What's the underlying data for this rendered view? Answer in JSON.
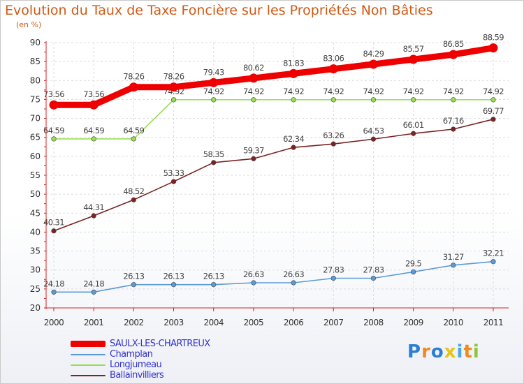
{
  "chart_data": {
    "type": "line",
    "title": "Evolution du Taux de Taxe Foncière sur les Propriétés Non Bâties",
    "unit_label": "(en %)",
    "categories": [
      "2000",
      "2001",
      "2002",
      "2003",
      "2004",
      "2005",
      "2006",
      "2007",
      "2008",
      "2009",
      "2010",
      "2011"
    ],
    "ylim": [
      20,
      90
    ],
    "yticks": [
      20,
      25,
      30,
      35,
      40,
      45,
      50,
      55,
      60,
      65,
      70,
      75,
      80,
      85,
      90
    ],
    "grid": true,
    "legend_position": "bottom-left",
    "series": [
      {
        "name": "SAULX-LES-CHARTREUX",
        "color": "#ee0000",
        "values": [
          73.56,
          73.56,
          78.26,
          78.26,
          79.43,
          80.62,
          81.83,
          83.06,
          84.29,
          85.57,
          86.85,
          88.59
        ],
        "labels": [
          "73.56",
          "73.56",
          "78.26",
          "78.26",
          "79.43",
          "80.62",
          "81.83",
          "83.06",
          "84.29",
          "85.57",
          "86.85",
          "88.59"
        ]
      },
      {
        "name": "Champlan",
        "color": "#5b9bd5",
        "values": [
          24.18,
          24.18,
          26.13,
          26.13,
          26.13,
          26.63,
          26.63,
          27.83,
          27.83,
          29.5,
          31.27,
          32.21
        ],
        "labels": [
          "24.18",
          "24.18",
          "26.13",
          "26.13",
          "26.13",
          "26.63",
          "26.63",
          "27.83",
          "27.83",
          "29.5",
          "31.27",
          "32.21"
        ]
      },
      {
        "name": "Longjumeau",
        "color": "#99dd55",
        "values": [
          64.59,
          64.59,
          64.59,
          74.92,
          74.92,
          74.92,
          74.92,
          74.92,
          74.92,
          74.92,
          74.92,
          74.92
        ],
        "labels": [
          "64.59",
          "64.59",
          "64.59",
          "74.92",
          "74.92",
          "74.92",
          "74.92",
          "74.92",
          "74.92",
          "74.92",
          "74.92",
          "74.92"
        ]
      },
      {
        "name": "Ballainvilliers",
        "color": "#7a2424",
        "values": [
          40.31,
          44.31,
          48.52,
          53.33,
          58.35,
          59.37,
          62.34,
          63.26,
          64.53,
          66.01,
          67.16,
          69.77
        ],
        "labels": [
          "40.31",
          "44.31",
          "48.52",
          "53.33",
          "58.35",
          "59.37",
          "62.34",
          "63.26",
          "64.53",
          "66.01",
          "67.16",
          "69.77"
        ]
      }
    ]
  },
  "legend": {
    "items": [
      {
        "name": "SAULX-LES-CHARTREUX",
        "color": "#ee0000",
        "text_color": "#3333cc"
      },
      {
        "name": "Champlan",
        "color": "#5b9bd5",
        "text_color": "#3333cc"
      },
      {
        "name": "Longjumeau",
        "color": "#99dd55",
        "text_color": "#3333cc"
      },
      {
        "name": "Ballainvilliers",
        "color": "#7a2424",
        "text_color": "#3333cc"
      }
    ]
  },
  "logo": {
    "text": "Proxiti",
    "letters": [
      {
        "ch": "P",
        "color": "#2a7fd4"
      },
      {
        "ch": "r",
        "color": "#f08a1c"
      },
      {
        "ch": "o",
        "color": "#2a7fd4"
      },
      {
        "ch": "x",
        "color": "#e8c414"
      },
      {
        "ch": "i",
        "color": "#4aa8e0"
      },
      {
        "ch": "t",
        "color": "#f08a1c"
      },
      {
        "ch": "i",
        "color": "#8cc63f"
      }
    ]
  }
}
